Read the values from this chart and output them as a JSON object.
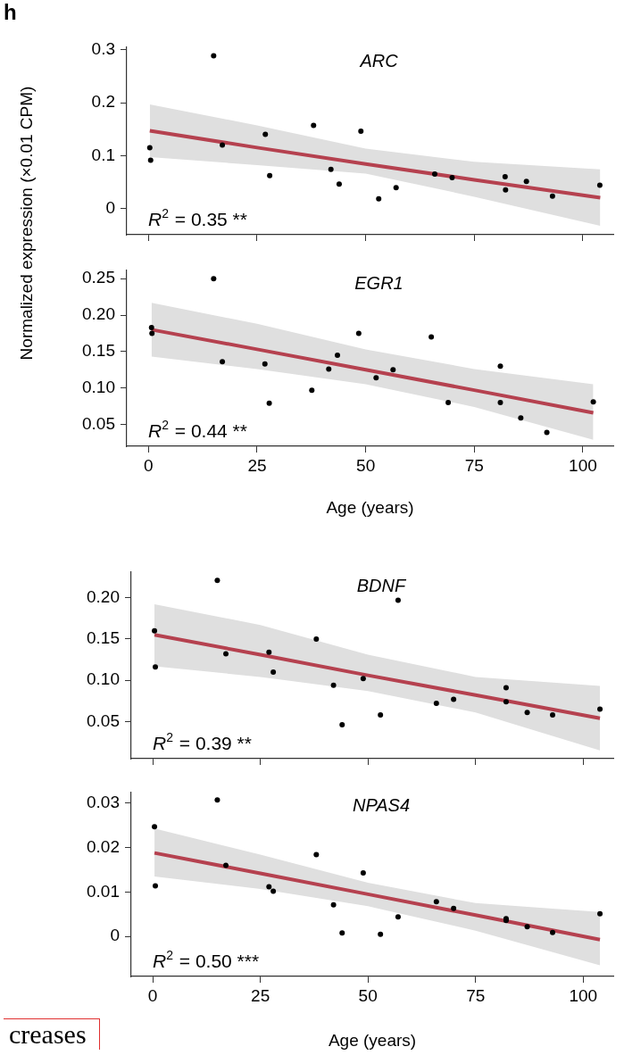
{
  "chart_data": [
    {
      "type": "scatter",
      "title": "ARC",
      "ylabel": "Normalized expression (×0.01 CPM)",
      "tick_labels": "y",
      "xlim": [
        -5,
        107
      ],
      "xticks": [
        0,
        25,
        50,
        75,
        100
      ],
      "ylim": [
        -0.05,
        0.305
      ],
      "yticks": [
        0,
        0.1,
        0.2,
        0.3
      ],
      "annotations": [
        "R$^{2}$ = 0.35 **",
        "h"
      ],
      "x": [
        15.0,
        0.3,
        0.5,
        17.0,
        26.9,
        27.9,
        38.0,
        42.0,
        43.9,
        48.9,
        53.0,
        57.0,
        65.9,
        69.9,
        82.1,
        82.2,
        87.0,
        93.0,
        103.9
      ],
      "series": [
        {
          "type": "scatter",
          "marker": "circle",
          "color": "#000000",
          "values": [
            0.289,
            0.115,
            0.091,
            0.12,
            0.14,
            0.062,
            0.157,
            0.074,
            0.046,
            0.146,
            0.018,
            0.039,
            0.065,
            0.058,
            0.06,
            0.035,
            0.051,
            0.023,
            0.044
          ]
        },
        {
          "type": "line",
          "marker": "none",
          "color": "#b5414f",
          "x": [
            0.3,
            25,
            50,
            75,
            104
          ],
          "values": [
            0.147,
            0.115,
            0.084,
            0.054,
            0.02
          ],
          "lower": [
            0.097,
            0.082,
            0.066,
            0.022,
            -0.033
          ],
          "upper": [
            0.197,
            0.157,
            0.113,
            0.088,
            0.074
          ]
        }
      ]
    },
    {
      "type": "scatter",
      "title": "EGR1",
      "xlabel": "Age (years)",
      "xlim": [
        -5,
        107
      ],
      "xticks": [
        0,
        25,
        50,
        75,
        100
      ],
      "ylim": [
        0.02,
        0.262
      ],
      "yticks": [
        {
          "value": 0.05,
          "label": "0.05"
        },
        {
          "value": 0.1,
          "label": "0.10"
        },
        {
          "value": 0.15,
          "label": "0.15"
        },
        {
          "value": 0.2,
          "label": "0.20"
        },
        {
          "value": 0.25,
          "label": "0.25"
        }
      ],
      "annotations": [
        "R$^{2}$ = 0.44 **"
      ],
      "x": [
        15.0,
        0.7,
        0.8,
        17.0,
        26.8,
        27.8,
        37.6,
        41.5,
        43.5,
        48.4,
        52.4,
        56.3,
        65.1,
        69.0,
        81.0,
        81.0,
        85.7,
        91.7,
        102.4
      ],
      "series": [
        {
          "type": "scatter",
          "marker": "circle",
          "color": "#000000",
          "values": [
            0.25,
            0.183,
            0.175,
            0.136,
            0.133,
            0.079,
            0.097,
            0.126,
            0.145,
            0.175,
            0.114,
            0.125,
            0.17,
            0.08,
            0.13,
            0.08,
            0.059,
            0.039,
            0.081
          ]
        },
        {
          "type": "line",
          "marker": "none",
          "color": "#b5414f",
          "x": [
            0.7,
            25,
            50,
            75,
            102.4
          ],
          "values": [
            0.18,
            0.153,
            0.125,
            0.097,
            0.066
          ],
          "lower": [
            0.143,
            0.126,
            0.105,
            0.074,
            0.029
          ],
          "upper": [
            0.217,
            0.188,
            0.153,
            0.126,
            0.105
          ]
        }
      ]
    },
    {
      "type": "scatter",
      "title": "BDNF",
      "tick_labels": "y",
      "xlim": [
        -5,
        107
      ],
      "xticks": [
        0,
        25,
        50,
        75,
        100
      ],
      "ylim": [
        0.005,
        0.231
      ],
      "yticks": [
        {
          "value": 0.05,
          "label": "0.05"
        },
        {
          "value": 0.1,
          "label": "0.10"
        },
        {
          "value": 0.15,
          "label": "0.15"
        },
        {
          "value": 0.2,
          "label": "0.20"
        }
      ],
      "annotations": [
        "R$^{2}$ = 0.39 **"
      ],
      "x": [
        15.0,
        0.4,
        0.6,
        17.0,
        27.0,
        28.0,
        38.0,
        42.0,
        44.0,
        48.9,
        52.9,
        57.0,
        65.9,
        69.9,
        82.1,
        82.1,
        87.0,
        92.9,
        103.9
      ],
      "series": [
        {
          "type": "scatter",
          "marker": "circle",
          "color": "#000000",
          "values": [
            0.221,
            0.16,
            0.116,
            0.132,
            0.134,
            0.11,
            0.15,
            0.094,
            0.046,
            0.102,
            0.058,
            0.197,
            0.072,
            0.077,
            0.091,
            0.074,
            0.061,
            0.058,
            0.065
          ]
        },
        {
          "type": "line",
          "marker": "none",
          "color": "#b5414f",
          "x": [
            0.4,
            25,
            50,
            75,
            103.9
          ],
          "values": [
            0.155,
            0.131,
            0.106,
            0.082,
            0.054
          ],
          "lower": [
            0.117,
            0.104,
            0.087,
            0.061,
            0.015
          ],
          "upper": [
            0.192,
            0.167,
            0.131,
            0.104,
            0.093
          ]
        }
      ]
    },
    {
      "type": "scatter",
      "title": "NPAS4",
      "xlabel": "Age (years)",
      "xlim": [
        -5,
        107
      ],
      "xticks": [
        0,
        25,
        50,
        75,
        100
      ],
      "ylim": [
        -0.009,
        0.0325
      ],
      "yticks": [
        0,
        0.01,
        0.02,
        0.03
      ],
      "annotations": [
        "R$^{2}$ = 0.50 ***",
        "creases"
      ],
      "x": [
        15.0,
        0.4,
        0.6,
        17.0,
        27.0,
        28.0,
        38.0,
        42.0,
        44.0,
        48.9,
        52.9,
        57.0,
        65.9,
        69.9,
        82.1,
        82.1,
        87.0,
        92.9,
        103.9
      ],
      "series": [
        {
          "type": "scatter",
          "marker": "circle",
          "color": "#000000",
          "values": [
            0.0307,
            0.0247,
            0.0114,
            0.016,
            0.0112,
            0.0102,
            0.0184,
            0.0071,
            0.0008,
            0.0143,
            0.0005,
            0.0044,
            0.0078,
            0.0063,
            0.004,
            0.0036,
            0.0022,
            0.0009,
            0.0051
          ]
        },
        {
          "type": "line",
          "marker": "none",
          "color": "#b5414f",
          "x": [
            0.4,
            25,
            50,
            75,
            103.9
          ],
          "values": [
            0.0188,
            0.0142,
            0.0095,
            0.0048,
            -0.0007
          ],
          "lower": [
            0.0135,
            0.0107,
            0.0068,
            0.0013,
            -0.0065
          ],
          "upper": [
            0.0243,
            0.0184,
            0.0121,
            0.0075,
            0.0055
          ]
        }
      ]
    }
  ]
}
